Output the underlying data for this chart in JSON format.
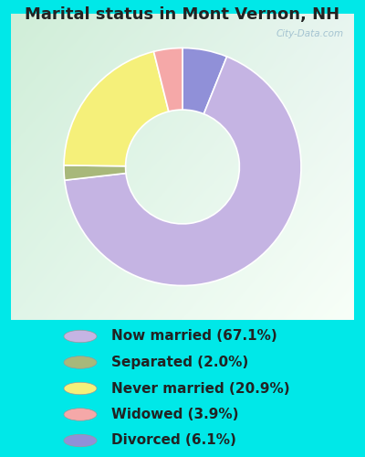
{
  "title": "Marital status in Mont Vernon, NH",
  "slices": [
    67.1,
    2.0,
    20.9,
    3.9,
    6.1
  ],
  "labels": [
    "Now married (67.1%)",
    "Separated (2.0%)",
    "Never married (20.9%)",
    "Widowed (3.9%)",
    "Divorced (6.1%)"
  ],
  "colors": [
    "#c5b4e3",
    "#a8b87a",
    "#f5f07a",
    "#f5a8a8",
    "#9090d8"
  ],
  "bg_cyan": "#00e8e8",
  "chart_bg_tl": "#d0eed8",
  "chart_bg_tr": "#e8f5f0",
  "chart_bg_br": "#ffffff",
  "title_fontsize": 13,
  "legend_fontsize": 11,
  "watermark": "City-Data.com",
  "donut_width": 0.52,
  "pie_order": [
    4,
    0,
    1,
    2,
    3
  ],
  "start_angle": 90
}
